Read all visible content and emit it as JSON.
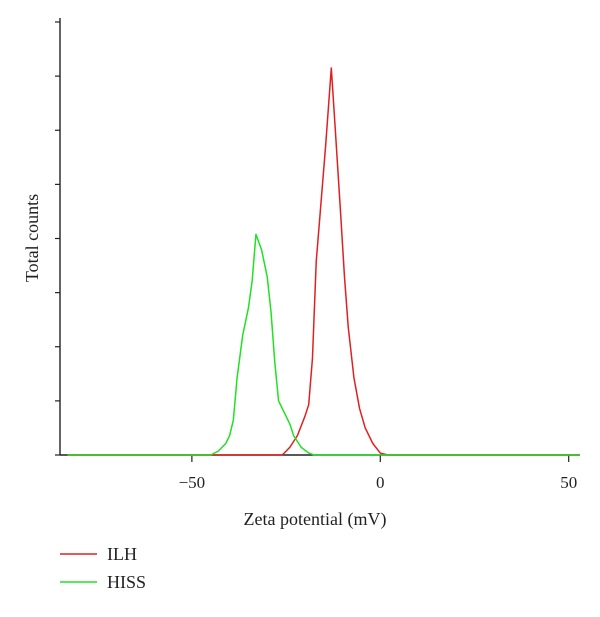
{
  "chart_data": {
    "type": "line",
    "xlabel": "Zeta potential (mV)",
    "ylabel": "Total counts",
    "xlim": [
      -85,
      53
    ],
    "ylim": [
      0,
      1.0
    ],
    "x_ticks": [
      -50,
      0,
      50
    ],
    "x_tick_labels": [
      "−50",
      "0",
      "50"
    ],
    "y_tick_count": 9,
    "grid": false,
    "legend_position": "bottom-left",
    "series": [
      {
        "name": "ILH",
        "color": "#e02020",
        "points": [
          [
            -83,
            0
          ],
          [
            -26,
            0
          ],
          [
            -24,
            0.02
          ],
          [
            -22,
            0.05
          ],
          [
            -20,
            0.1
          ],
          [
            -19,
            0.13
          ],
          [
            -18,
            0.25
          ],
          [
            -17,
            0.5
          ],
          [
            -16,
            0.62
          ],
          [
            -14.5,
            0.8
          ],
          [
            -13,
            1.0
          ],
          [
            -12,
            0.85
          ],
          [
            -10.5,
            0.62
          ],
          [
            -9.5,
            0.46
          ],
          [
            -8.5,
            0.33
          ],
          [
            -7,
            0.2
          ],
          [
            -5.5,
            0.12
          ],
          [
            -4,
            0.07
          ],
          [
            -2,
            0.03
          ],
          [
            0,
            0.005
          ],
          [
            2,
            0
          ],
          [
            53,
            0
          ]
        ]
      },
      {
        "name": "HISS",
        "color": "#22e022",
        "points": [
          [
            -83,
            0
          ],
          [
            -45,
            0
          ],
          [
            -43,
            0.01
          ],
          [
            -41,
            0.03
          ],
          [
            -40,
            0.05
          ],
          [
            -39,
            0.09
          ],
          [
            -38,
            0.2
          ],
          [
            -36.5,
            0.31
          ],
          [
            -35,
            0.38
          ],
          [
            -34,
            0.45
          ],
          [
            -33,
            0.57
          ],
          [
            -31.5,
            0.53
          ],
          [
            -30,
            0.46
          ],
          [
            -29,
            0.37
          ],
          [
            -28,
            0.24
          ],
          [
            -27,
            0.14
          ],
          [
            -26,
            0.12
          ],
          [
            -25,
            0.1
          ],
          [
            -24,
            0.08
          ],
          [
            -23,
            0.05
          ],
          [
            -21,
            0.02
          ],
          [
            -19,
            0.005
          ],
          [
            -17.5,
            0
          ],
          [
            53,
            0
          ]
        ]
      }
    ]
  },
  "legend": {
    "items": [
      {
        "label": "ILH",
        "color": "#e02020"
      },
      {
        "label": "HISS",
        "color": "#22e022"
      }
    ]
  }
}
